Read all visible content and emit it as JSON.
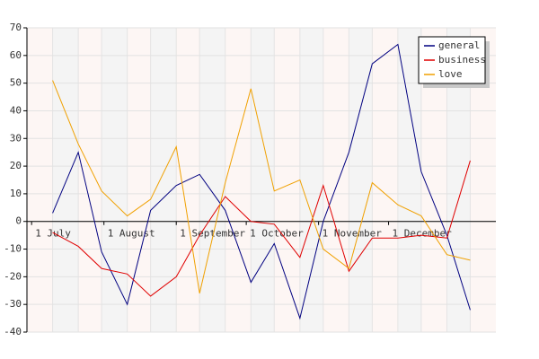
{
  "chart_data": {
    "type": "line",
    "x": [
      9,
      20,
      30,
      41,
      51,
      62,
      72,
      83,
      94,
      104,
      115,
      125,
      136,
      146,
      157,
      167,
      178,
      188
    ],
    "series": [
      {
        "name": "general",
        "color": "#000080",
        "values": [
          3,
          25,
          -11,
          -30,
          4,
          13,
          17,
          4,
          -22,
          -8,
          -35,
          0,
          25,
          57,
          64,
          18,
          -5,
          -32
        ]
      },
      {
        "name": "business",
        "color": "#e00000",
        "values": [
          -4,
          -9,
          -17,
          -19,
          -27,
          -20,
          -5,
          9,
          0,
          -1,
          -13,
          13,
          -18,
          -6,
          -6,
          -5,
          -6,
          22
        ]
      },
      {
        "name": "love",
        "color": "#f0a000",
        "values": [
          51,
          28,
          11,
          2,
          8,
          27,
          -26,
          14,
          48,
          11,
          15,
          -10,
          -17,
          14,
          6,
          2,
          -12,
          -14
        ]
      }
    ],
    "xlim": [
      -2,
      199
    ],
    "xticks": [
      {
        "value": 0,
        "label": "1 July"
      },
      {
        "value": 31,
        "label": "1 August"
      },
      {
        "value": 62,
        "label": "1 September"
      },
      {
        "value": 92,
        "label": "1 October"
      },
      {
        "value": 123,
        "label": "1 November"
      },
      {
        "value": 153,
        "label": "1 December"
      }
    ],
    "ylim": [
      -40,
      70
    ],
    "yticks": [
      -40,
      -30,
      -20,
      -10,
      0,
      10,
      20,
      30,
      40,
      50,
      60,
      70
    ],
    "grid": true,
    "legend": "top-right"
  }
}
